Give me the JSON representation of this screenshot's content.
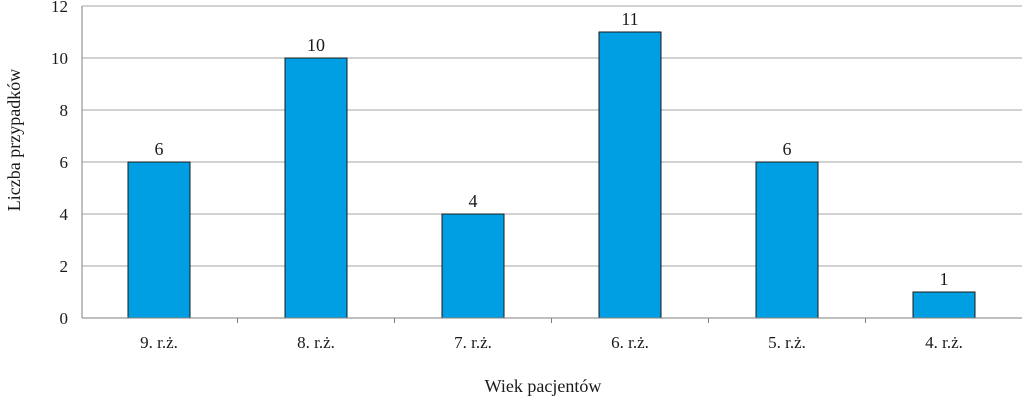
{
  "chart_data": {
    "type": "bar",
    "categories": [
      "9. r.ż.",
      "8. r.ż.",
      "7. r.ż.",
      "6. r.ż.",
      "5. r.ż.",
      "4. r.ż."
    ],
    "values": [
      6,
      10,
      4,
      11,
      6,
      1
    ],
    "data_labels": [
      "6",
      "10",
      "4",
      "11",
      "6",
      "1"
    ],
    "title": "",
    "xlabel": "Wiek pacjentów",
    "ylabel": "Liczba przypadków",
    "ylim": [
      0,
      12
    ],
    "yticks": [
      0,
      2,
      4,
      6,
      8,
      10,
      12
    ],
    "ytick_labels": [
      "0",
      "2",
      "4",
      "6",
      "8",
      "10",
      "12"
    ],
    "grid": true,
    "legend": "none",
    "bar_color": "#009fe3"
  }
}
